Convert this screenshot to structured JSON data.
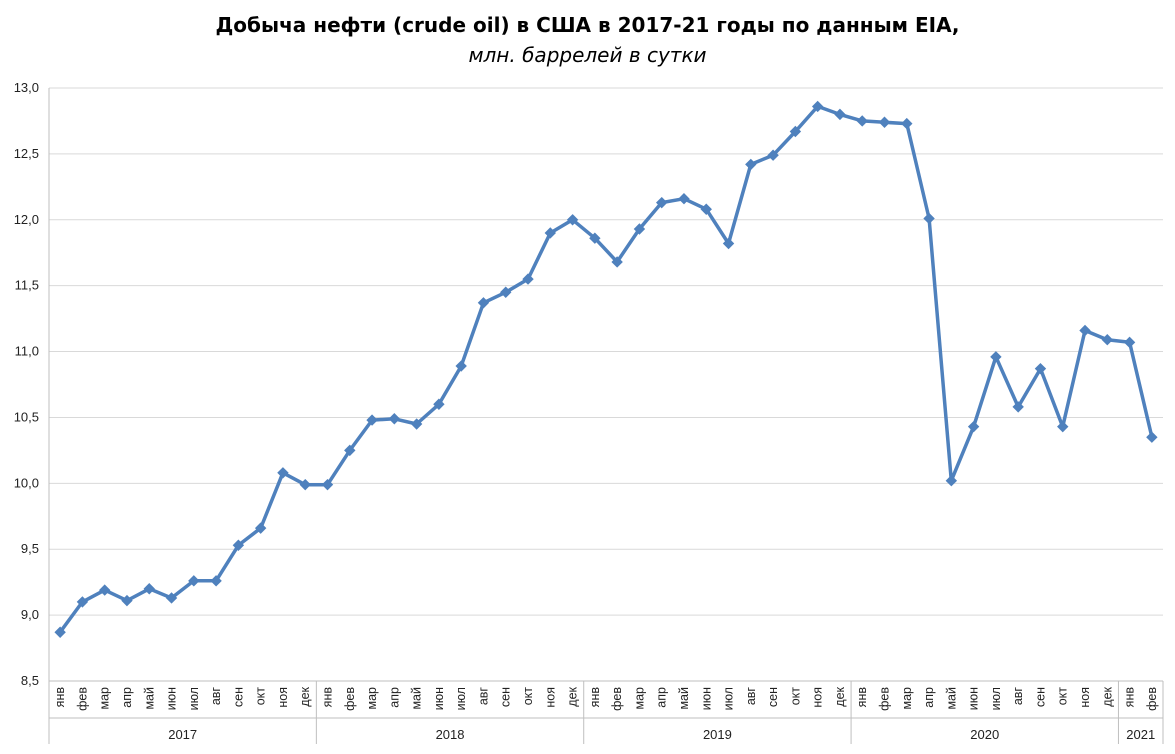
{
  "chart_data": {
    "type": "line",
    "title": "Добыча нефти (crude oil) в США в 2017-21 годы по данным EIA,",
    "subtitle": "млн. баррелей в сутки",
    "xlabel": "",
    "ylabel": "",
    "ylim": [
      8.5,
      13.0
    ],
    "yticks": [
      "8,5",
      "9,0",
      "9,5",
      "10,0",
      "10,5",
      "11,0",
      "11,5",
      "12,0",
      "12,5",
      "13,0"
    ],
    "ytick_values": [
      8.5,
      9.0,
      9.5,
      10.0,
      10.5,
      11.0,
      11.5,
      12.0,
      12.5,
      13.0
    ],
    "grid": true,
    "legend": "none",
    "series_color": "#4F81BD",
    "categories": [
      "янв",
      "фев",
      "мар",
      "апр",
      "май",
      "июн",
      "июл",
      "авг",
      "сен",
      "окт",
      "ноя",
      "дек",
      "янв",
      "фев",
      "мар",
      "апр",
      "май",
      "июн",
      "июл",
      "авг",
      "сен",
      "окт",
      "ноя",
      "дек",
      "янв",
      "фев",
      "мар",
      "апр",
      "май",
      "июн",
      "июл",
      "авг",
      "сен",
      "окт",
      "ноя",
      "дек",
      "янв",
      "фев",
      "мар",
      "апр",
      "май",
      "июн",
      "июл",
      "авг",
      "сен",
      "окт",
      "ноя",
      "дек",
      "янв",
      "фев"
    ],
    "groups": [
      {
        "label": "2017",
        "count": 12
      },
      {
        "label": "2018",
        "count": 12
      },
      {
        "label": "2019",
        "count": 12
      },
      {
        "label": "2020",
        "count": 12
      },
      {
        "label": "2021",
        "count": 2
      }
    ],
    "values": [
      8.87,
      9.1,
      9.19,
      9.11,
      9.2,
      9.13,
      9.26,
      9.26,
      9.53,
      9.66,
      10.08,
      9.99,
      9.99,
      10.25,
      10.48,
      10.49,
      10.45,
      10.6,
      10.89,
      11.37,
      11.45,
      11.55,
      11.9,
      12.0,
      11.86,
      11.68,
      11.93,
      12.13,
      12.16,
      12.08,
      11.82,
      12.42,
      12.49,
      12.67,
      12.86,
      12.8,
      12.75,
      12.74,
      12.73,
      12.01,
      10.02,
      10.43,
      10.96,
      10.58,
      10.87,
      10.43,
      11.16,
      11.09,
      11.07,
      10.35
    ]
  }
}
